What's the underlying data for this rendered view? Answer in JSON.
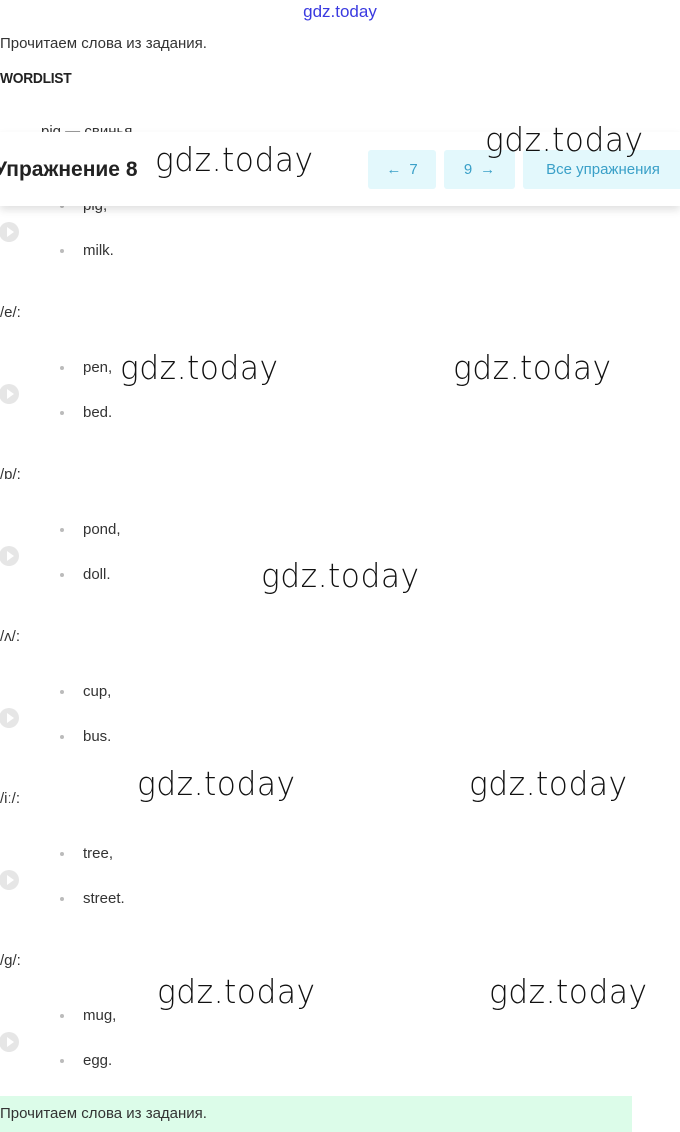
{
  "watermark_top": "gdz.today",
  "watermark": "gdz.today",
  "intro": "Прочитаем слова из задания.",
  "wordlist_title": "WORDLIST",
  "cut_item": "pig — свинья",
  "header": {
    "title": "Упражнение 8",
    "prev_label": "7",
    "next_label": "9",
    "all_label": "Все упражнения",
    "prev_icon": "arrow-left-icon",
    "next_icon": "arrow-right-icon"
  },
  "sections": [
    {
      "label": "",
      "words": [
        "pig,",
        "milk."
      ]
    },
    {
      "label": "/e/:",
      "words": [
        "pen,",
        "bed."
      ]
    },
    {
      "label": "/ɒ/:",
      "words": [
        "pond,",
        "doll."
      ]
    },
    {
      "label": "/ʌ/:",
      "words": [
        "cup,",
        "bus."
      ]
    },
    {
      "label": "/iː/:",
      "words": [
        "tree,",
        "street."
      ]
    },
    {
      "label": "/g/:",
      "words": [
        "mug,",
        "egg."
      ]
    }
  ],
  "answer_text": "Прочитаем слова из задания.",
  "colors": {
    "accent": "#3aa0c8",
    "button_bg": "#e3f8fc",
    "answer_bg": "#dcfce9"
  }
}
